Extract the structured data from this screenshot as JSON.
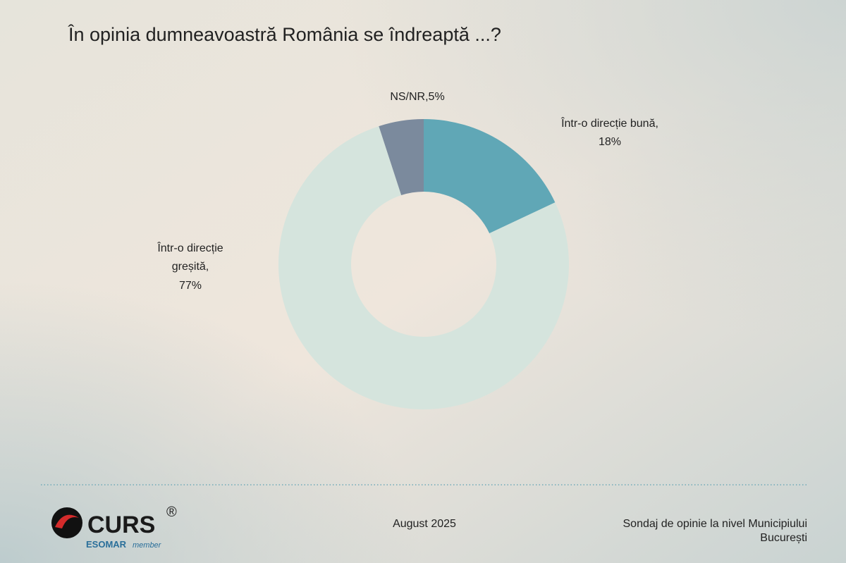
{
  "chart_data": {
    "type": "donut",
    "title": "În opinia dumneavoastră România se îndreaptă ...?",
    "categories": [
      "Într-o direcție bună,",
      "Într-o direcție greșită,",
      "NS/NR,"
    ],
    "values": [
      18,
      77,
      5
    ],
    "value_labels": [
      "18%",
      "77%",
      "5%"
    ],
    "colors": [
      "#60a7b6",
      "#d5e4dd",
      "#7b8a9d"
    ]
  },
  "footer": {
    "logo": "CURS",
    "registered": "®",
    "esomar": "ESOMAR",
    "member": "member",
    "date": "August 2025",
    "source": [
      "Sondaj de opinie la nivel Municipiului",
      "București"
    ]
  }
}
